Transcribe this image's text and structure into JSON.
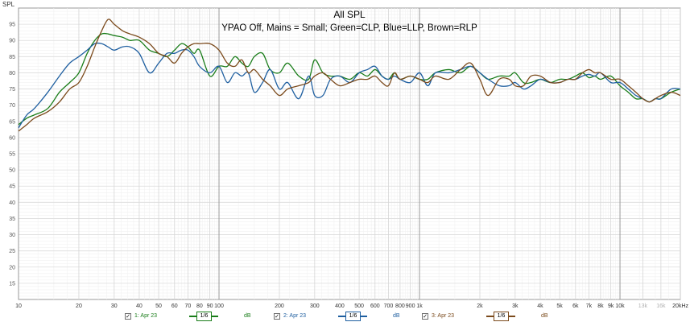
{
  "chart_data": {
    "type": "line",
    "title": "All SPL",
    "subtitle": "YPAO Off, Mains = Small; Green=CLP, Blue=LLP, Brown=RLP",
    "ylabel": "SPL",
    "xlabel": "",
    "xscale": "log",
    "xlim": [
      10,
      20000
    ],
    "ylim": [
      10,
      100
    ],
    "grid": true,
    "y_ticks": [
      15,
      20,
      25,
      30,
      35,
      40,
      45,
      50,
      55,
      60,
      65,
      70,
      75,
      80,
      85,
      90,
      95
    ],
    "x_ticks": [
      {
        "v": 10,
        "label": "10",
        "major": true
      },
      {
        "v": 20,
        "label": "20"
      },
      {
        "v": 30,
        "label": "30"
      },
      {
        "v": 40,
        "label": "40"
      },
      {
        "v": 50,
        "label": "50"
      },
      {
        "v": 60,
        "label": "60"
      },
      {
        "v": 70,
        "label": "70"
      },
      {
        "v": 80,
        "label": "80"
      },
      {
        "v": 90,
        "label": "90"
      },
      {
        "v": 100,
        "label": "100",
        "major": true
      },
      {
        "v": 200,
        "label": "200"
      },
      {
        "v": 300,
        "label": "300"
      },
      {
        "v": 400,
        "label": "400"
      },
      {
        "v": 500,
        "label": "500"
      },
      {
        "v": 600,
        "label": "600"
      },
      {
        "v": 700,
        "label": "700"
      },
      {
        "v": 800,
        "label": "800"
      },
      {
        "v": 900,
        "label": "900"
      },
      {
        "v": 1000,
        "label": "1k",
        "major": true
      },
      {
        "v": 2000,
        "label": "2k"
      },
      {
        "v": 3000,
        "label": "3k"
      },
      {
        "v": 4000,
        "label": "4k"
      },
      {
        "v": 5000,
        "label": "5k"
      },
      {
        "v": 6000,
        "label": "6k"
      },
      {
        "v": 7000,
        "label": "7k"
      },
      {
        "v": 8000,
        "label": "8k"
      },
      {
        "v": 9000,
        "label": "9k"
      },
      {
        "v": 10000,
        "label": "10k",
        "major": true
      },
      {
        "v": 13000,
        "label": "13k",
        "faded": true
      },
      {
        "v": 16000,
        "label": "16k",
        "faded": true
      },
      {
        "v": 20000,
        "label": "20kHz"
      }
    ],
    "series": [
      {
        "name": "1: Apr 23",
        "color": "#1a7d1a",
        "smoothing": "1/6",
        "unit": "dB",
        "x": [
          10,
          11,
          12,
          14,
          16,
          18,
          20,
          22,
          24,
          26,
          28,
          30,
          33,
          36,
          40,
          45,
          50,
          55,
          60,
          65,
          70,
          75,
          80,
          90,
          100,
          110,
          120,
          130,
          140,
          150,
          165,
          180,
          200,
          220,
          250,
          280,
          300,
          330,
          360,
          400,
          450,
          500,
          550,
          600,
          650,
          700,
          750,
          800,
          900,
          1000,
          1100,
          1200,
          1400,
          1600,
          1800,
          2000,
          2200,
          2500,
          2800,
          3000,
          3300,
          3600,
          4000,
          4500,
          5000,
          5500,
          6000,
          6500,
          7000,
          7500,
          8000,
          9000,
          10000,
          11000,
          12000,
          13000,
          14000,
          15000,
          16000,
          18000,
          20000
        ],
        "values": [
          64,
          66,
          67,
          69,
          74,
          77,
          80,
          86,
          90,
          92,
          92,
          91.5,
          91,
          90,
          90,
          87,
          86,
          85,
          87,
          89,
          88,
          86,
          87,
          79,
          82,
          82,
          85,
          83,
          82,
          85,
          86,
          81,
          80,
          83,
          79,
          78,
          84,
          80,
          79,
          79,
          78,
          80,
          79,
          81,
          79,
          78,
          80,
          78,
          79,
          78,
          78,
          80,
          81,
          80,
          82,
          80,
          78,
          79,
          79,
          80,
          77,
          77,
          78,
          77,
          78,
          78,
          79,
          80,
          78.5,
          79,
          78,
          79,
          76,
          74,
          72,
          72,
          71,
          72,
          72,
          74,
          75
        ]
      },
      {
        "name": "2: Apr 23",
        "color": "#1f5fa0",
        "smoothing": "1/6",
        "unit": "dB",
        "x": [
          10,
          11,
          12,
          14,
          16,
          18,
          20,
          22,
          24,
          26,
          28,
          30,
          33,
          36,
          40,
          45,
          50,
          55,
          60,
          65,
          70,
          75,
          80,
          90,
          100,
          110,
          120,
          130,
          140,
          150,
          165,
          180,
          200,
          220,
          250,
          280,
          300,
          330,
          360,
          400,
          450,
          500,
          550,
          600,
          650,
          700,
          750,
          800,
          900,
          1000,
          1100,
          1200,
          1400,
          1600,
          1800,
          2000,
          2200,
          2500,
          2800,
          3000,
          3300,
          3600,
          4000,
          4500,
          5000,
          5500,
          6000,
          6500,
          7000,
          7500,
          8000,
          9000,
          10000,
          11000,
          12000,
          13000,
          14000,
          15000,
          16000,
          18000,
          20000
        ],
        "values": [
          63,
          67,
          69,
          74,
          79,
          83,
          85,
          87,
          89,
          89,
          88,
          87,
          88,
          88,
          86,
          80,
          83,
          86,
          86,
          87,
          87,
          85,
          82,
          80,
          82,
          77,
          80,
          79,
          80,
          74,
          77,
          81,
          75,
          77,
          72,
          79,
          73,
          73,
          78,
          79,
          77,
          80,
          81,
          82,
          79,
          78,
          79,
          78,
          77,
          80,
          76,
          80,
          80,
          81,
          82,
          80,
          78,
          76,
          76,
          77,
          75,
          76,
          78,
          77,
          77,
          78,
          78,
          79,
          79.5,
          79,
          80,
          77,
          77,
          75,
          73,
          72,
          71,
          72,
          72,
          75,
          75
        ]
      },
      {
        "name": "3: Apr 23",
        "color": "#7b4a1c",
        "smoothing": "1/6",
        "unit": "dB",
        "x": [
          10,
          11,
          12,
          14,
          16,
          18,
          20,
          22,
          24,
          26,
          28,
          30,
          33,
          36,
          40,
          45,
          50,
          55,
          60,
          65,
          70,
          75,
          80,
          90,
          100,
          110,
          120,
          130,
          140,
          150,
          165,
          180,
          200,
          220,
          250,
          280,
          300,
          330,
          360,
          400,
          450,
          500,
          550,
          600,
          650,
          700,
          750,
          800,
          900,
          1000,
          1100,
          1200,
          1400,
          1600,
          1800,
          2000,
          2200,
          2500,
          2800,
          3000,
          3300,
          3600,
          4000,
          4500,
          5000,
          5500,
          6000,
          6500,
          7000,
          7500,
          8000,
          9000,
          10000,
          11000,
          12000,
          13000,
          14000,
          15000,
          16000,
          18000,
          20000
        ],
        "values": [
          62,
          64,
          66,
          68,
          71,
          75,
          77,
          82,
          88,
          93,
          96.5,
          95,
          93,
          92,
          91,
          89,
          86,
          85,
          83,
          86,
          88,
          89,
          89,
          89,
          87,
          83,
          82,
          84,
          80,
          81,
          78,
          76,
          73,
          75,
          76,
          77,
          79,
          80,
          78,
          76,
          77,
          78,
          78,
          79,
          77,
          76,
          80,
          78,
          79,
          78,
          77,
          79,
          78,
          81,
          83,
          78,
          73,
          78,
          78,
          76,
          76,
          79,
          79,
          77,
          77,
          78,
          78,
          80,
          81,
          80,
          80,
          78,
          78,
          76,
          74,
          72,
          71,
          72,
          73,
          74,
          73
        ]
      }
    ]
  },
  "legend": [
    {
      "check": "✓",
      "name": "1: Apr 23",
      "smoothing": "1/6",
      "unit": "dB",
      "color": "#1a7d1a"
    },
    {
      "check": "✓",
      "name": "2: Apr 23",
      "smoothing": "1/6",
      "unit": "dB",
      "color": "#1f5fa0"
    },
    {
      "check": "✓",
      "name": "3: Apr 23",
      "smoothing": "1/6",
      "unit": "dB",
      "color": "#7b4a1c"
    }
  ]
}
